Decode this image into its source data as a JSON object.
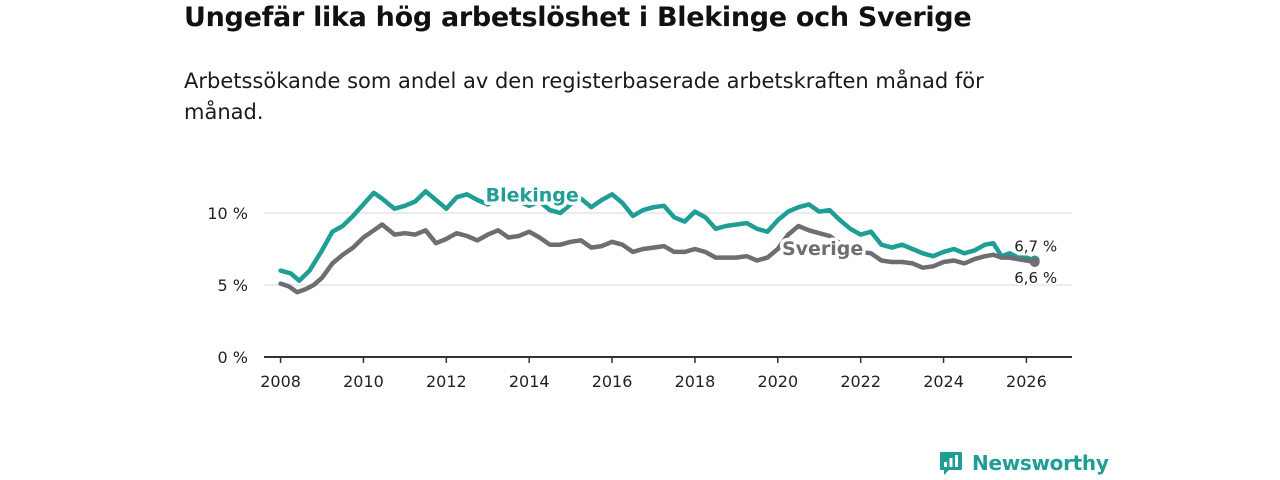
{
  "title": "Ungefär lika hög arbetslöshet i Blekinge och Sverige",
  "subtitle": "Arbetssökande som andel av den registerbaserade arbetskraften månad för månad.",
  "brand": {
    "name": "Newsworthy",
    "icon": "bar-chart-speech-bubble-icon",
    "color": "#1e9e94"
  },
  "chart_data": {
    "type": "line",
    "title": "Ungefär lika hög arbetslöshet i Blekinge och Sverige",
    "xlabel": "",
    "ylabel": "",
    "xlim": [
      2007.6,
      2027.1
    ],
    "ylim": [
      0,
      10
    ],
    "grid": true,
    "x_ticks": [
      2008,
      2010,
      2012,
      2014,
      2016,
      2018,
      2020,
      2022,
      2024,
      2026
    ],
    "y_ticks": [
      0,
      5,
      10
    ],
    "y_tick_labels": [
      "0 %",
      "5 %",
      "10 %"
    ],
    "series": [
      {
        "name": "Blekinge",
        "color": "#1e9e94",
        "label_at": [
          2012.95,
          10.8
        ],
        "end_label": "6,7 %",
        "points": [
          [
            2008.0,
            6.0
          ],
          [
            2008.25,
            5.8
          ],
          [
            2008.45,
            5.3
          ],
          [
            2008.7,
            6.0
          ],
          [
            2009.0,
            7.4
          ],
          [
            2009.25,
            8.7
          ],
          [
            2009.5,
            9.1
          ],
          [
            2009.75,
            9.8
          ],
          [
            2010.0,
            10.6
          ],
          [
            2010.25,
            11.4
          ],
          [
            2010.45,
            11.0
          ],
          [
            2010.75,
            10.3
          ],
          [
            2011.0,
            10.5
          ],
          [
            2011.25,
            10.8
          ],
          [
            2011.5,
            11.5
          ],
          [
            2011.75,
            10.9
          ],
          [
            2012.0,
            10.3
          ],
          [
            2012.25,
            11.1
          ],
          [
            2012.5,
            11.3
          ],
          [
            2012.75,
            10.9
          ],
          [
            2013.0,
            10.6
          ],
          [
            2013.25,
            11.1
          ],
          [
            2013.5,
            11.4
          ],
          [
            2013.75,
            10.8
          ],
          [
            2014.0,
            10.5
          ],
          [
            2014.25,
            10.8
          ],
          [
            2014.5,
            10.2
          ],
          [
            2014.75,
            10.0
          ],
          [
            2015.0,
            10.6
          ],
          [
            2015.25,
            11.0
          ],
          [
            2015.5,
            10.4
          ],
          [
            2015.75,
            10.9
          ],
          [
            2016.0,
            11.3
          ],
          [
            2016.25,
            10.7
          ],
          [
            2016.5,
            9.8
          ],
          [
            2016.75,
            10.2
          ],
          [
            2017.0,
            10.4
          ],
          [
            2017.25,
            10.5
          ],
          [
            2017.5,
            9.7
          ],
          [
            2017.75,
            9.4
          ],
          [
            2018.0,
            10.1
          ],
          [
            2018.25,
            9.7
          ],
          [
            2018.5,
            8.9
          ],
          [
            2018.75,
            9.1
          ],
          [
            2019.0,
            9.2
          ],
          [
            2019.25,
            9.3
          ],
          [
            2019.5,
            8.9
          ],
          [
            2019.75,
            8.7
          ],
          [
            2020.0,
            9.5
          ],
          [
            2020.25,
            10.1
          ],
          [
            2020.5,
            10.4
          ],
          [
            2020.75,
            10.6
          ],
          [
            2021.0,
            10.1
          ],
          [
            2021.25,
            10.2
          ],
          [
            2021.5,
            9.5
          ],
          [
            2021.75,
            8.9
          ],
          [
            2022.0,
            8.5
          ],
          [
            2022.25,
            8.7
          ],
          [
            2022.5,
            7.8
          ],
          [
            2022.75,
            7.6
          ],
          [
            2023.0,
            7.8
          ],
          [
            2023.25,
            7.5
          ],
          [
            2023.5,
            7.2
          ],
          [
            2023.75,
            7.0
          ],
          [
            2024.0,
            7.3
          ],
          [
            2024.25,
            7.5
          ],
          [
            2024.5,
            7.2
          ],
          [
            2024.75,
            7.4
          ],
          [
            2025.0,
            7.8
          ],
          [
            2025.2,
            7.9
          ],
          [
            2025.4,
            7.0
          ],
          [
            2025.6,
            7.2
          ],
          [
            2025.8,
            6.9
          ],
          [
            2026.0,
            6.9
          ],
          [
            2026.2,
            6.7
          ]
        ]
      },
      {
        "name": "Sverige",
        "color": "#6f6c73",
        "label_at": [
          2020.1,
          7.1
        ],
        "end_label": "6,6 %",
        "points": [
          [
            2008.0,
            5.1
          ],
          [
            2008.2,
            4.9
          ],
          [
            2008.4,
            4.5
          ],
          [
            2008.6,
            4.7
          ],
          [
            2008.8,
            5.0
          ],
          [
            2009.0,
            5.5
          ],
          [
            2009.25,
            6.5
          ],
          [
            2009.5,
            7.1
          ],
          [
            2009.75,
            7.6
          ],
          [
            2010.0,
            8.3
          ],
          [
            2010.25,
            8.8
          ],
          [
            2010.45,
            9.2
          ],
          [
            2010.75,
            8.5
          ],
          [
            2011.0,
            8.6
          ],
          [
            2011.25,
            8.5
          ],
          [
            2011.5,
            8.8
          ],
          [
            2011.75,
            7.9
          ],
          [
            2012.0,
            8.2
          ],
          [
            2012.25,
            8.6
          ],
          [
            2012.5,
            8.4
          ],
          [
            2012.75,
            8.1
          ],
          [
            2013.0,
            8.5
          ],
          [
            2013.25,
            8.8
          ],
          [
            2013.5,
            8.3
          ],
          [
            2013.75,
            8.4
          ],
          [
            2014.0,
            8.7
          ],
          [
            2014.25,
            8.3
          ],
          [
            2014.5,
            7.8
          ],
          [
            2014.75,
            7.8
          ],
          [
            2015.0,
            8.0
          ],
          [
            2015.25,
            8.1
          ],
          [
            2015.5,
            7.6
          ],
          [
            2015.75,
            7.7
          ],
          [
            2016.0,
            8.0
          ],
          [
            2016.25,
            7.8
          ],
          [
            2016.5,
            7.3
          ],
          [
            2016.75,
            7.5
          ],
          [
            2017.0,
            7.6
          ],
          [
            2017.25,
            7.7
          ],
          [
            2017.5,
            7.3
          ],
          [
            2017.75,
            7.3
          ],
          [
            2018.0,
            7.5
          ],
          [
            2018.25,
            7.3
          ],
          [
            2018.5,
            6.9
          ],
          [
            2018.75,
            6.9
          ],
          [
            2019.0,
            6.9
          ],
          [
            2019.25,
            7.0
          ],
          [
            2019.5,
            6.7
          ],
          [
            2019.75,
            6.9
          ],
          [
            2020.0,
            7.5
          ],
          [
            2020.25,
            8.5
          ],
          [
            2020.5,
            9.1
          ],
          [
            2020.75,
            8.8
          ],
          [
            2021.0,
            8.6
          ],
          [
            2021.25,
            8.4
          ],
          [
            2021.5,
            7.9
          ],
          [
            2021.75,
            7.5
          ],
          [
            2022.0,
            7.3
          ],
          [
            2022.25,
            7.2
          ],
          [
            2022.5,
            6.7
          ],
          [
            2022.75,
            6.6
          ],
          [
            2023.0,
            6.6
          ],
          [
            2023.25,
            6.5
          ],
          [
            2023.5,
            6.2
          ],
          [
            2023.75,
            6.3
          ],
          [
            2024.0,
            6.6
          ],
          [
            2024.25,
            6.7
          ],
          [
            2024.5,
            6.5
          ],
          [
            2024.75,
            6.8
          ],
          [
            2025.0,
            7.0
          ],
          [
            2025.2,
            7.1
          ],
          [
            2025.4,
            6.9
          ],
          [
            2025.6,
            6.9
          ],
          [
            2025.8,
            6.8
          ],
          [
            2026.0,
            6.7
          ],
          [
            2026.2,
            6.6
          ]
        ]
      }
    ]
  }
}
